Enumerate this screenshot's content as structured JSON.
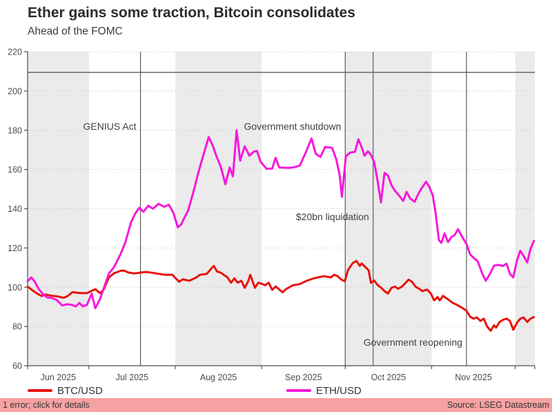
{
  "header": {
    "title": "Ether gains some traction, Bitcoin consolidates",
    "subtitle": "Ahead of the FOMC"
  },
  "status_bar": {
    "error_text": "1 error; click for details",
    "source_text": "Source: LSEG Datastream",
    "bg": "#f7a2a2"
  },
  "chart_data": {
    "type": "line",
    "title": "Ether gains some traction, Bitcoin consolidates",
    "subtitle": "Ahead of the FOMC",
    "x_unit": "days since 2025-06-01",
    "x_range": [
      8,
      190
    ],
    "y_range": [
      60,
      220
    ],
    "y_ticks": [
      60,
      80,
      100,
      120,
      140,
      160,
      180,
      200,
      220
    ],
    "grid": "dotted-horizontal",
    "legend_position": "bottom",
    "colors": {
      "band": "#ebebeb",
      "grid": "#c6c6c6",
      "axis": "#4d4d4d",
      "event_line": "#5a5a5a",
      "reference_line": "#4a4a4a",
      "text": "#4d4d4d",
      "annotation": "#3f3f3f"
    },
    "reference_line": {
      "value": 209.5
    },
    "months": [
      {
        "label": "Jun 2025",
        "start": 0,
        "end": 30,
        "shaded": true
      },
      {
        "label": "Jul 2025",
        "start": 30,
        "end": 61,
        "shaded": false
      },
      {
        "label": "Aug 2025",
        "start": 61,
        "end": 92,
        "shaded": true
      },
      {
        "label": "Sep 2025",
        "start": 92,
        "end": 122,
        "shaded": false
      },
      {
        "label": "Oct 2025",
        "start": 122,
        "end": 153,
        "shaded": true
      },
      {
        "label": "Nov 2025",
        "start": 153,
        "end": 183,
        "shaded": false
      },
      {
        "label": "",
        "start": 183,
        "end": 190,
        "shaded": true
      }
    ],
    "events": [
      {
        "label": "GENIUS Act",
        "day": 48.5,
        "label_v": 182
      },
      {
        "label": "Government shutdown",
        "day": 122,
        "label_v": 182
      },
      {
        "label": "$20bn liquidation",
        "day": 132,
        "label_v": 136
      },
      {
        "label": "Government reopening",
        "day": 165.5,
        "label_v": 72
      }
    ],
    "series": [
      {
        "name": "BTC/USD",
        "color": "#e8120b",
        "points": [
          [
            8,
            100.3
          ],
          [
            9.7,
            98.5
          ],
          [
            11.2,
            97
          ],
          [
            13,
            95.5
          ],
          [
            14.5,
            96.3
          ],
          [
            16,
            95.8
          ],
          [
            17.4,
            95.5
          ],
          [
            19.2,
            95.2
          ],
          [
            20.9,
            94.6
          ],
          [
            22.4,
            95.5
          ],
          [
            24.1,
            97.5
          ],
          [
            25.8,
            97.2
          ],
          [
            27.3,
            97
          ],
          [
            29.3,
            97
          ],
          [
            30.8,
            98
          ],
          [
            32.3,
            99
          ],
          [
            34,
            97
          ],
          [
            35.2,
            98.5
          ],
          [
            37.2,
            105
          ],
          [
            38.9,
            107
          ],
          [
            41.4,
            108.4
          ],
          [
            42.6,
            108.5
          ],
          [
            44.1,
            107.5
          ],
          [
            46.3,
            107
          ],
          [
            48.8,
            107.5
          ],
          [
            50.6,
            107.8
          ],
          [
            52.5,
            107.4
          ],
          [
            55,
            106.8
          ],
          [
            57.5,
            106.3
          ],
          [
            60,
            106.3
          ],
          [
            61.2,
            104.5
          ],
          [
            62.4,
            102.8
          ],
          [
            63.7,
            104
          ],
          [
            66.1,
            103.3
          ],
          [
            68.6,
            105
          ],
          [
            69.8,
            106.3
          ],
          [
            72.3,
            106.8
          ],
          [
            74.8,
            110.9
          ],
          [
            76,
            108
          ],
          [
            77.3,
            107.4
          ],
          [
            79.7,
            105
          ],
          [
            81,
            102.3
          ],
          [
            82.2,
            104.5
          ],
          [
            83.4,
            102.3
          ],
          [
            84.7,
            103.3
          ],
          [
            85.9,
            99.7
          ],
          [
            87.1,
            102.8
          ],
          [
            87.9,
            106.3
          ],
          [
            89.6,
            99.7
          ],
          [
            90.8,
            102.3
          ],
          [
            92.1,
            101.7
          ],
          [
            93.3,
            101
          ],
          [
            94.5,
            102.3
          ],
          [
            95.8,
            98.6
          ],
          [
            97,
            100.4
          ],
          [
            99.5,
            97.4
          ],
          [
            100.7,
            99
          ],
          [
            103.2,
            101
          ],
          [
            105.7,
            101.6
          ],
          [
            108.2,
            103.3
          ],
          [
            110.6,
            104.5
          ],
          [
            113.1,
            105.3
          ],
          [
            114.3,
            105.6
          ],
          [
            116.8,
            105
          ],
          [
            118,
            106.3
          ],
          [
            119.3,
            105.6
          ],
          [
            120.5,
            104
          ],
          [
            121.8,
            103
          ],
          [
            123,
            108.8
          ],
          [
            124.7,
            112.3
          ],
          [
            126,
            113.4
          ],
          [
            127.2,
            110.9
          ],
          [
            127.9,
            112.1
          ],
          [
            129.2,
            110.3
          ],
          [
            130.4,
            108.6
          ],
          [
            131.2,
            102.2
          ],
          [
            132.4,
            103.4
          ],
          [
            133.6,
            101.1
          ],
          [
            134.9,
            99.7
          ],
          [
            136.1,
            98
          ],
          [
            137.3,
            96.8
          ],
          [
            138.6,
            99.7
          ],
          [
            139.8,
            100.3
          ],
          [
            141,
            99.2
          ],
          [
            142.3,
            100.3
          ],
          [
            143.5,
            102
          ],
          [
            144.7,
            103.9
          ],
          [
            146,
            102.7
          ],
          [
            147.2,
            100.3
          ],
          [
            148.5,
            99.2
          ],
          [
            149.7,
            98
          ],
          [
            151.4,
            98.8
          ],
          [
            152.7,
            96.8
          ],
          [
            153.9,
            93.3
          ],
          [
            155.1,
            95
          ],
          [
            155.9,
            93.3
          ],
          [
            157.1,
            95.6
          ],
          [
            158.9,
            93.8
          ],
          [
            160.6,
            92
          ],
          [
            162.1,
            91
          ],
          [
            163.8,
            89.6
          ],
          [
            165.5,
            88
          ],
          [
            166.8,
            85
          ],
          [
            168,
            84
          ],
          [
            169.2,
            84.6
          ],
          [
            170.5,
            82.8
          ],
          [
            171.7,
            84
          ],
          [
            172.9,
            80
          ],
          [
            174.2,
            77.8
          ],
          [
            175.4,
            80.6
          ],
          [
            176.1,
            79.4
          ],
          [
            177.4,
            82.3
          ],
          [
            178.6,
            83.4
          ],
          [
            179.9,
            84
          ],
          [
            181.1,
            82.8
          ],
          [
            182.3,
            78.3
          ],
          [
            183.6,
            81.8
          ],
          [
            184.8,
            84
          ],
          [
            186,
            84.6
          ],
          [
            187.3,
            82.3
          ],
          [
            188.5,
            84
          ],
          [
            189.7,
            84.8
          ]
        ]
      },
      {
        "name": "ETH/USD",
        "color": "#f716dd",
        "points": [
          [
            8,
            103
          ],
          [
            9.3,
            105
          ],
          [
            10.5,
            103
          ],
          [
            12,
            99
          ],
          [
            13.5,
            96.5
          ],
          [
            15,
            94.8
          ],
          [
            16.7,
            94.5
          ],
          [
            18.4,
            93.5
          ],
          [
            20.4,
            90.7
          ],
          [
            22.1,
            91.3
          ],
          [
            23.9,
            91
          ],
          [
            25.3,
            90.2
          ],
          [
            26.6,
            92
          ],
          [
            27.8,
            90.2
          ],
          [
            29.3,
            91
          ],
          [
            31,
            96.7
          ],
          [
            32.3,
            89.3
          ],
          [
            34,
            94
          ],
          [
            35.7,
            101
          ],
          [
            37.2,
            107
          ],
          [
            38.9,
            110
          ],
          [
            40.2,
            113.5
          ],
          [
            41.4,
            117
          ],
          [
            43.1,
            123
          ],
          [
            45.1,
            133
          ],
          [
            46.6,
            137.5
          ],
          [
            48.1,
            140.5
          ],
          [
            49.6,
            138.5
          ],
          [
            51.3,
            141.5
          ],
          [
            53,
            140
          ],
          [
            55,
            142.5
          ],
          [
            57,
            141
          ],
          [
            58.7,
            142
          ],
          [
            60.3,
            138
          ],
          [
            61.9,
            130.5
          ],
          [
            63.1,
            132
          ],
          [
            64.3,
            135.5
          ],
          [
            65.6,
            139
          ],
          [
            67.4,
            148
          ],
          [
            69.1,
            157.5
          ],
          [
            70.8,
            166
          ],
          [
            73,
            176.5
          ],
          [
            74.5,
            172
          ],
          [
            75.7,
            167
          ],
          [
            77.3,
            161.5
          ],
          [
            79,
            152.5
          ],
          [
            80.5,
            161
          ],
          [
            81.7,
            156.5
          ],
          [
            83,
            180
          ],
          [
            84.3,
            164.5
          ],
          [
            85.9,
            171.8
          ],
          [
            87.6,
            167
          ],
          [
            89.1,
            169
          ],
          [
            90.3,
            169.5
          ],
          [
            91.6,
            164
          ],
          [
            93.8,
            160.3
          ],
          [
            95.8,
            160.5
          ],
          [
            97,
            166
          ],
          [
            98.3,
            161
          ],
          [
            101.5,
            160.8
          ],
          [
            103.2,
            161
          ],
          [
            105.7,
            162
          ],
          [
            108.2,
            170
          ],
          [
            109.9,
            175.8
          ],
          [
            111.4,
            168
          ],
          [
            113.1,
            166.4
          ],
          [
            114.8,
            171.5
          ],
          [
            117.3,
            171
          ],
          [
            118.8,
            165
          ],
          [
            120,
            157
          ],
          [
            120.8,
            146
          ],
          [
            122.2,
            166.8
          ],
          [
            123.7,
            168.6
          ],
          [
            125.5,
            169
          ],
          [
            126.7,
            175.4
          ],
          [
            128,
            170.9
          ],
          [
            128.9,
            167
          ],
          [
            130.1,
            169.3
          ],
          [
            131.2,
            167.5
          ],
          [
            132.4,
            163.6
          ],
          [
            133.6,
            154.3
          ],
          [
            134.8,
            143.2
          ],
          [
            136.1,
            158.3
          ],
          [
            137.3,
            157
          ],
          [
            138.6,
            152
          ],
          [
            139.8,
            149.2
          ],
          [
            141.5,
            146.4
          ],
          [
            142.8,
            144
          ],
          [
            144,
            148.6
          ],
          [
            145.3,
            145.2
          ],
          [
            146.9,
            143.5
          ],
          [
            148.2,
            147.5
          ],
          [
            149.4,
            150.4
          ],
          [
            151,
            153.8
          ],
          [
            152.2,
            151
          ],
          [
            153.4,
            146.8
          ],
          [
            154.4,
            138
          ],
          [
            155.6,
            124
          ],
          [
            156.5,
            122.6
          ],
          [
            157.6,
            127.4
          ],
          [
            158.9,
            123
          ],
          [
            160.1,
            125.5
          ],
          [
            161.3,
            126.7
          ],
          [
            162.5,
            129.6
          ],
          [
            163.8,
            126
          ],
          [
            165.5,
            122
          ],
          [
            166.8,
            116.8
          ],
          [
            168,
            115
          ],
          [
            169.5,
            113.3
          ],
          [
            171.2,
            106.8
          ],
          [
            172.4,
            103.3
          ],
          [
            173.7,
            106.2
          ],
          [
            175.4,
            111
          ],
          [
            176.9,
            111.4
          ],
          [
            178.6,
            110.8
          ],
          [
            179.9,
            112
          ],
          [
            181.1,
            106.7
          ],
          [
            182.3,
            105
          ],
          [
            183.6,
            113.6
          ],
          [
            184.8,
            118.6
          ],
          [
            186,
            116
          ],
          [
            187.3,
            112.6
          ],
          [
            188.5,
            119.6
          ],
          [
            189.7,
            123.6
          ]
        ]
      }
    ]
  }
}
